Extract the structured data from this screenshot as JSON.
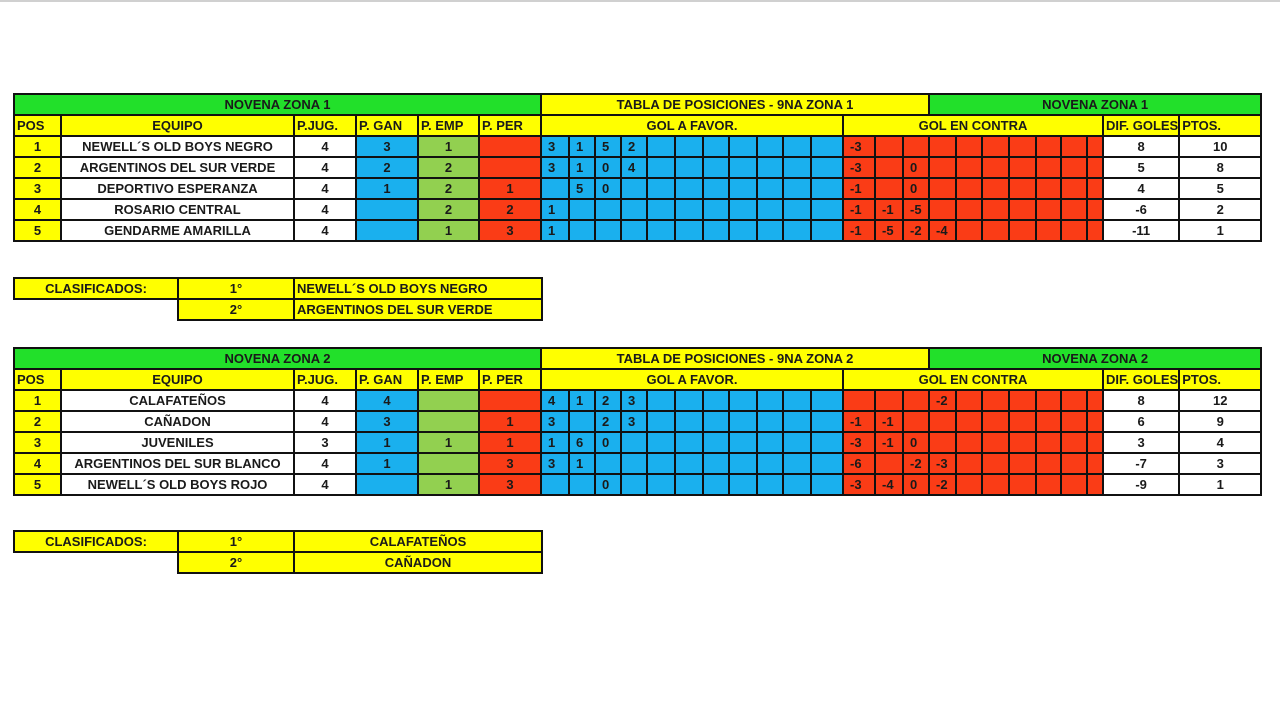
{
  "colors": {
    "zone_green": "#22e02a",
    "header_yellow": "#ffff00",
    "win_blue": "#1ab0ee",
    "draw_green": "#92d050",
    "loss_red": "#fa3c16"
  },
  "headers": {
    "pos": "POS",
    "team": "EQUIPO",
    "played": "P.JUG.",
    "won": "P. GAN",
    "drawn": "P. EMP",
    "lost": "P. PER",
    "goals_for": "GOL A FAVOR.",
    "goals_against": "GOL EN CONTRA",
    "goal_diff": "DIF. GOLES",
    "points": "PTOS."
  },
  "zones": [
    {
      "title_left": "NOVENA ZONA 1",
      "title_center": "TABLA DE POSICIONES - 9NA ZONA 1",
      "title_right": "NOVENA ZONA 1",
      "rows": [
        {
          "pos": "1",
          "team": "NEWELL´S OLD BOYS NEGRO",
          "played": "4",
          "won": "3",
          "drawn": "1",
          "lost": "",
          "goals_for": [
            "3",
            "1",
            "5",
            "2",
            "",
            "",
            "",
            "",
            "",
            "",
            ""
          ],
          "goals_against": [
            "-3",
            "",
            "",
            "",
            "",
            "",
            "",
            "",
            "",
            ""
          ],
          "goal_diff": "8",
          "points": "10"
        },
        {
          "pos": "2",
          "team": "ARGENTINOS DEL SUR VERDE",
          "played": "4",
          "won": "2",
          "drawn": "2",
          "lost": "",
          "goals_for": [
            "3",
            "1",
            "0",
            "4",
            "",
            "",
            "",
            "",
            "",
            "",
            ""
          ],
          "goals_against": [
            "-3",
            "",
            "0",
            "",
            "",
            "",
            "",
            "",
            "",
            ""
          ],
          "goal_diff": "5",
          "points": "8"
        },
        {
          "pos": "3",
          "team": "DEPORTIVO ESPERANZA",
          "played": "4",
          "won": "1",
          "drawn": "2",
          "lost": "1",
          "goals_for": [
            "",
            "5",
            "0",
            "",
            "",
            "",
            "",
            "",
            "",
            "",
            ""
          ],
          "goals_against": [
            "-1",
            "",
            "0",
            "",
            "",
            "",
            "",
            "",
            "",
            ""
          ],
          "goal_diff": "4",
          "points": "5"
        },
        {
          "pos": "4",
          "team": "ROSARIO CENTRAL",
          "played": "4",
          "won": "",
          "drawn": "2",
          "lost": "2",
          "goals_for": [
            "1",
            "",
            "",
            "",
            "",
            "",
            "",
            "",
            "",
            "",
            ""
          ],
          "goals_against": [
            "-1",
            "-1",
            "-5",
            "",
            "",
            "",
            "",
            "",
            "",
            ""
          ],
          "goal_diff": "-6",
          "points": "2"
        },
        {
          "pos": "5",
          "team": "GENDARME AMARILLA",
          "played": "4",
          "won": "",
          "drawn": "1",
          "lost": "3",
          "goals_for": [
            "1",
            "",
            "",
            "",
            "",
            "",
            "",
            "",
            "",
            "",
            ""
          ],
          "goals_against": [
            "-1",
            "-5",
            "-2",
            "-4",
            "",
            "",
            "",
            "",
            "",
            ""
          ],
          "goal_diff": "-11",
          "points": "1"
        }
      ],
      "classified": {
        "label": "CLASIFICADOS:",
        "first_label": "1°",
        "first": "NEWELL´S OLD BOYS NEGRO",
        "second_label": "2°",
        "second": "ARGENTINOS DEL SUR VERDE"
      }
    },
    {
      "title_left": "NOVENA ZONA 2",
      "title_center": "TABLA DE POSICIONES - 9NA ZONA 2",
      "title_right": "NOVENA ZONA 2",
      "rows": [
        {
          "pos": "1",
          "team": "CALAFATEÑOS",
          "played": "4",
          "won": "4",
          "drawn": "",
          "lost": "",
          "goals_for": [
            "4",
            "1",
            "2",
            "3",
            "",
            "",
            "",
            "",
            "",
            "",
            ""
          ],
          "goals_against": [
            "",
            "",
            "",
            "-2",
            "",
            "",
            "",
            "",
            "",
            ""
          ],
          "goal_diff": "8",
          "points": "12"
        },
        {
          "pos": "2",
          "team": "CAÑADON",
          "played": "4",
          "won": "3",
          "drawn": "",
          "lost": "1",
          "goals_for": [
            "3",
            "",
            "2",
            "3",
            "",
            "",
            "",
            "",
            "",
            "",
            ""
          ],
          "goals_against": [
            "-1",
            "-1",
            "",
            "",
            "",
            "",
            "",
            "",
            "",
            ""
          ],
          "goal_diff": "6",
          "points": "9"
        },
        {
          "pos": "3",
          "team": "JUVENILES",
          "played": "3",
          "won": "1",
          "drawn": "1",
          "lost": "1",
          "goals_for": [
            "1",
            "6",
            "0",
            "",
            "",
            "",
            "",
            "",
            "",
            "",
            ""
          ],
          "goals_against": [
            "-3",
            "-1",
            "0",
            "",
            "",
            "",
            "",
            "",
            "",
            ""
          ],
          "goal_diff": "3",
          "points": "4"
        },
        {
          "pos": "4",
          "team": "ARGENTINOS DEL SUR BLANCO",
          "played": "4",
          "won": "1",
          "drawn": "",
          "lost": "3",
          "goals_for": [
            "3",
            "1",
            "",
            "",
            "",
            "",
            "",
            "",
            "",
            "",
            ""
          ],
          "goals_against": [
            "-6",
            "",
            "-2",
            "-3",
            "",
            "",
            "",
            "",
            "",
            ""
          ],
          "goal_diff": "-7",
          "points": "3"
        },
        {
          "pos": "5",
          "team": "NEWELL´S OLD BOYS ROJO",
          "played": "4",
          "won": "",
          "drawn": "1",
          "lost": "3",
          "goals_for": [
            "",
            "",
            "0",
            "",
            "",
            "",
            "",
            "",
            "",
            "",
            ""
          ],
          "goals_against": [
            "-3",
            "-4",
            "0",
            "-2",
            "",
            "",
            "",
            "",
            "",
            ""
          ],
          "goal_diff": "-9",
          "points": "1"
        }
      ],
      "classified": {
        "label": "CLASIFICADOS:",
        "first_label": "1°",
        "first": "CALAFATEÑOS",
        "second_label": "2°",
        "second": "CAÑADON"
      }
    }
  ]
}
